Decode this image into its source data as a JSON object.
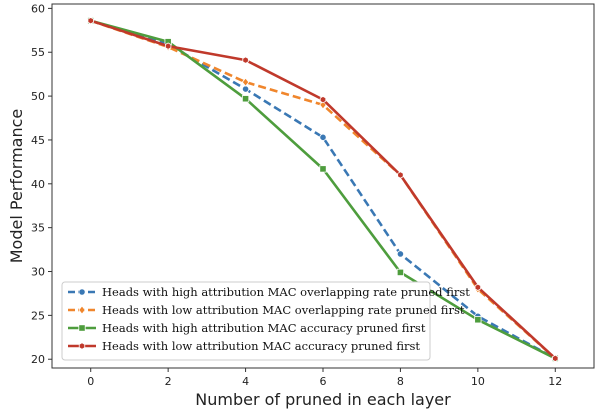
{
  "chart_data": {
    "type": "line",
    "xlabel": "Number of pruned in each layer",
    "ylabel": "Model Performance",
    "xlim": [
      -1,
      13
    ],
    "ylim": [
      19,
      60.5
    ],
    "x_ticks": [
      0,
      2,
      4,
      6,
      8,
      10,
      12
    ],
    "y_ticks": [
      20,
      25,
      30,
      35,
      40,
      45,
      50,
      55,
      60
    ],
    "grid": false,
    "legend_position": "bottom-left",
    "x": [
      0,
      2,
      4,
      6,
      8,
      10,
      12
    ],
    "series": [
      {
        "name": "Heads with high attribution MAC overlapping rate pruned first",
        "values": [
          58.6,
          55.9,
          50.8,
          45.3,
          32.0,
          24.9,
          20.1
        ],
        "color": "#3a78b4",
        "marker": "circle",
        "line_style": "dashed"
      },
      {
        "name": "Heads with low attribution MAC overlapping rate pruned first",
        "values": [
          58.6,
          55.6,
          51.6,
          49.0,
          41.0,
          28.0,
          20.1
        ],
        "color": "#f0862c",
        "marker": "diamond",
        "line_style": "dashed"
      },
      {
        "name": "Heads with high attribution MAC accuracy pruned first",
        "values": [
          58.6,
          56.2,
          49.7,
          41.7,
          29.9,
          24.5,
          20.1
        ],
        "color": "#4e9d3d",
        "marker": "square",
        "line_style": "solid"
      },
      {
        "name": "Heads with low attribution MAC accuracy pruned first",
        "values": [
          58.6,
          55.7,
          54.1,
          49.6,
          41.0,
          28.2,
          20.1
        ],
        "color": "#c0392b",
        "marker": "hexagon",
        "line_style": "solid"
      }
    ]
  }
}
